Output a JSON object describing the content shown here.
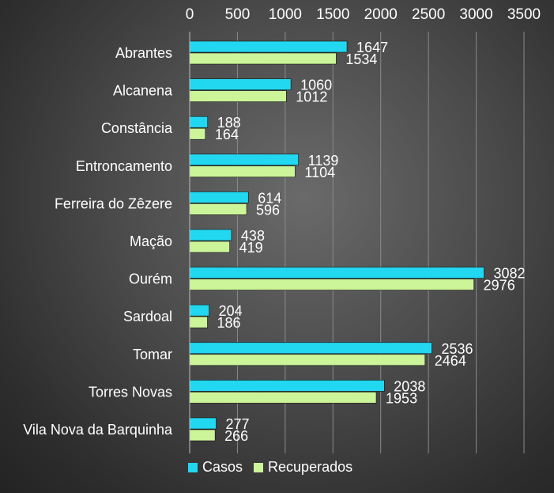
{
  "chart_data": {
    "type": "bar",
    "orientation": "horizontal",
    "categories": [
      "Abrantes",
      "Alcanena",
      "Constância",
      "Entroncamento",
      "Ferreira do Zêzere",
      "Mação",
      "Ourém",
      "Sardoal",
      "Tomar",
      "Torres Novas",
      "Vila Nova da Barquinha"
    ],
    "series": [
      {
        "name": "Casos",
        "color": "#22d8f0",
        "values": [
          1647,
          1060,
          188,
          1139,
          614,
          438,
          3082,
          204,
          2536,
          2038,
          277
        ]
      },
      {
        "name": "Recuperados",
        "color": "#ccf59a",
        "values": [
          1534,
          1012,
          164,
          1104,
          596,
          419,
          2976,
          186,
          2464,
          1953,
          266
        ]
      }
    ],
    "xlim": [
      0,
      3500
    ],
    "xticks": [
      "0",
      "500",
      "1000",
      "1500",
      "2000",
      "2500",
      "3000",
      "3500"
    ],
    "axis_position": "top",
    "grid": true,
    "legend_position": "bottom-left"
  }
}
